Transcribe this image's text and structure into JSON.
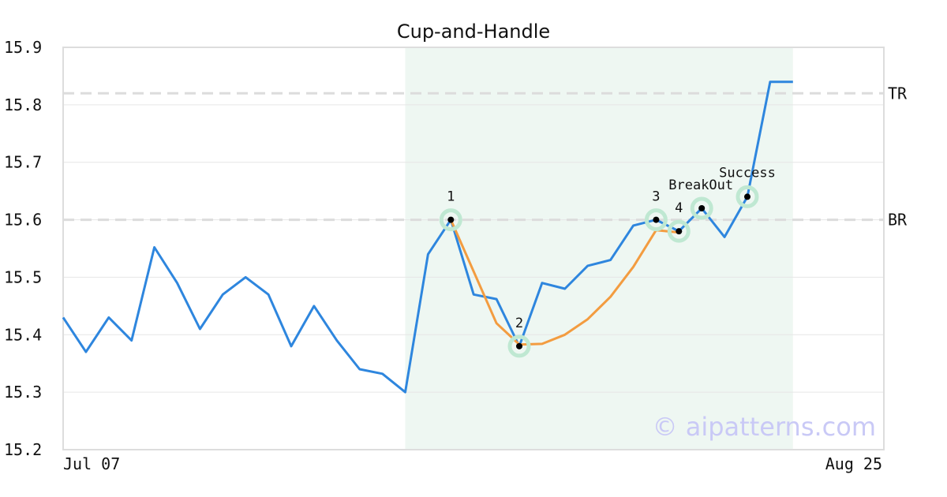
{
  "chart_data": {
    "type": "line",
    "title": "Cup-and-Handle",
    "xlabel": "",
    "ylabel": "",
    "ylim": [
      15.2,
      15.9
    ],
    "y_ticks": [
      "15.2",
      "15.3",
      "15.4",
      "15.5",
      "15.6",
      "15.7",
      "15.8",
      "15.9"
    ],
    "x_tick_labels": [
      "Jul 07",
      "Aug 25"
    ],
    "grid": "horizontal",
    "series": [
      {
        "color": "#2e86de",
        "values": [
          15.43,
          15.37,
          15.43,
          15.39,
          15.552,
          15.49,
          15.41,
          15.47,
          15.5,
          15.47,
          15.38,
          15.45,
          15.39,
          15.34,
          15.332,
          15.3,
          15.54,
          15.6,
          15.47,
          15.462,
          15.38,
          15.49,
          15.48,
          15.52,
          15.53,
          15.59,
          15.6,
          15.58,
          15.62,
          15.57,
          15.64,
          15.84,
          15.84
        ]
      },
      {
        "color": "#f39c40",
        "start_index": 17,
        "values": [
          15.6,
          15.51,
          15.42,
          15.383,
          15.384,
          15.4,
          15.427,
          15.466,
          15.518,
          15.582,
          15.578
        ]
      }
    ],
    "pattern_region": {
      "start_index": 15,
      "end_index": 32,
      "color": "#eef7f2"
    },
    "reference_lines": [
      {
        "label": "TR",
        "value": 15.82
      },
      {
        "label": "BR",
        "value": 15.6
      }
    ],
    "markers": [
      {
        "label": "1",
        "index": 17,
        "value": 15.6,
        "label_pos": "above"
      },
      {
        "label": "2",
        "index": 20,
        "value": 15.38,
        "label_pos": "above"
      },
      {
        "label": "3",
        "index": 26,
        "value": 15.6,
        "label_pos": "above"
      },
      {
        "label": "4",
        "index": 27,
        "value": 15.58,
        "label_pos": "above"
      },
      {
        "label": "BreakOut",
        "index": 28,
        "value": 15.62,
        "label_pos": "above-left"
      },
      {
        "label": "Success",
        "index": 30,
        "value": 15.64,
        "label_pos": "above"
      }
    ],
    "watermark": "© aipatterns.com"
  }
}
